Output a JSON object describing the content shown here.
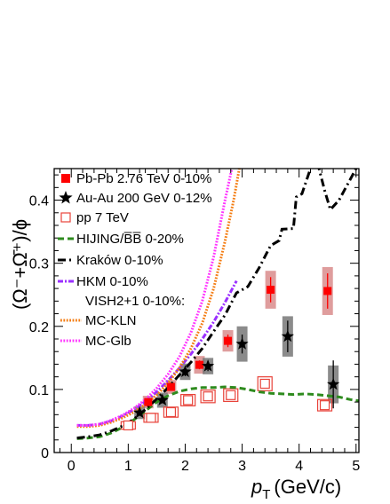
{
  "chart_data": {
    "type": "scatter",
    "xlabel": "p_T (GeV/c)",
    "xlabel_parts": {
      "main": "p",
      "sub": "T",
      "unit": "(GeV/c)"
    },
    "ylabel": "(Ω⁻+Ω̄⁺)/ϕ",
    "xlim": [
      -0.3,
      5.05
    ],
    "ylim": [
      0,
      0.45
    ],
    "x_ticks": [
      0,
      1,
      2,
      3,
      4,
      5
    ],
    "y_ticks": [
      0,
      0.1,
      0.2,
      0.3,
      0.4
    ],
    "x_tick_labels": [
      "0",
      "1",
      "2",
      "3",
      "4",
      "5"
    ],
    "y_tick_labels": [
      "0",
      "0.1",
      "0.2",
      "0.3",
      "0.4"
    ],
    "grid": false,
    "legend_position": "top-left inside plot",
    "legend_header": "VISH2+1 0-10%:",
    "series": [
      {
        "name": "Pb-Pb 2.76 TeV 0-10%",
        "kind": "points",
        "marker": "filled-square",
        "color": "#ff0000",
        "points": [
          {
            "x": 1.35,
            "y": 0.08,
            "stat": 0.004,
            "sys": 0.01
          },
          {
            "x": 1.75,
            "y": 0.104,
            "stat": 0.005,
            "sys": 0.011
          },
          {
            "x": 2.25,
            "y": 0.139,
            "stat": 0.007,
            "sys": 0.014
          },
          {
            "x": 2.75,
            "y": 0.177,
            "stat": 0.01,
            "sys": 0.017
          },
          {
            "x": 3.5,
            "y": 0.258,
            "stat": 0.02,
            "sys": 0.03
          },
          {
            "x": 4.5,
            "y": 0.256,
            "stat": 0.028,
            "sys": 0.038
          }
        ]
      },
      {
        "name": "Au-Au 200 GeV 0-12%",
        "kind": "points",
        "marker": "star",
        "color": "#000000",
        "points": [
          {
            "x": 1.2,
            "y": 0.063,
            "stat": 0.004,
            "sys": 0.01
          },
          {
            "x": 1.6,
            "y": 0.083,
            "stat": 0.005,
            "sys": 0.012
          },
          {
            "x": 2.0,
            "y": 0.128,
            "stat": 0.007,
            "sys": 0.013
          },
          {
            "x": 2.4,
            "y": 0.137,
            "stat": 0.008,
            "sys": 0.013
          },
          {
            "x": 3.0,
            "y": 0.172,
            "stat": 0.015,
            "sys": 0.028
          },
          {
            "x": 3.8,
            "y": 0.184,
            "stat": 0.025,
            "sys": 0.032
          },
          {
            "x": 4.6,
            "y": 0.108,
            "stat": 0.038,
            "sys": 0.03
          }
        ]
      },
      {
        "name": "pp 7 TeV",
        "kind": "points",
        "marker": "open-square",
        "color": "#e8433a",
        "points": [
          {
            "x": 1.0,
            "y": 0.043,
            "stat": 0.002,
            "sys": 0.006
          },
          {
            "x": 1.4,
            "y": 0.055,
            "stat": 0.002,
            "sys": 0.007
          },
          {
            "x": 1.75,
            "y": 0.064,
            "stat": 0.003,
            "sys": 0.008
          },
          {
            "x": 2.05,
            "y": 0.083,
            "stat": 0.003,
            "sys": 0.009
          },
          {
            "x": 2.4,
            "y": 0.089,
            "stat": 0.004,
            "sys": 0.01
          },
          {
            "x": 2.8,
            "y": 0.091,
            "stat": 0.004,
            "sys": 0.01
          },
          {
            "x": 3.4,
            "y": 0.109,
            "stat": 0.006,
            "sys": 0.011
          },
          {
            "x": 4.45,
            "y": 0.075,
            "stat": 0.005,
            "sys": 0.009
          }
        ]
      },
      {
        "name": "HIJING/B̅B̅ 0-20%",
        "kind": "line",
        "style": "dashed",
        "color": "#2e8b1e",
        "points": [
          [
            0.1,
            0.022
          ],
          [
            0.3,
            0.023
          ],
          [
            0.5,
            0.025
          ],
          [
            0.7,
            0.031
          ],
          [
            0.9,
            0.04
          ],
          [
            1.1,
            0.052
          ],
          [
            1.3,
            0.066
          ],
          [
            1.5,
            0.08
          ],
          [
            1.7,
            0.09
          ],
          [
            1.9,
            0.097
          ],
          [
            2.1,
            0.101
          ],
          [
            2.3,
            0.103
          ],
          [
            2.5,
            0.103
          ],
          [
            2.7,
            0.104
          ],
          [
            2.9,
            0.103
          ],
          [
            3.1,
            0.1
          ],
          [
            3.3,
            0.096
          ],
          [
            3.5,
            0.094
          ],
          [
            3.7,
            0.093
          ],
          [
            3.9,
            0.092
          ],
          [
            4.1,
            0.093
          ],
          [
            4.3,
            0.092
          ],
          [
            4.5,
            0.09
          ],
          [
            4.7,
            0.088
          ],
          [
            4.9,
            0.084
          ],
          [
            5.05,
            0.082
          ]
        ]
      },
      {
        "name": "Kraków 0-10%",
        "kind": "line",
        "style": "dash-dot",
        "color": "#000000",
        "points": [
          [
            0.1,
            0.023
          ],
          [
            0.3,
            0.025
          ],
          [
            0.5,
            0.028
          ],
          [
            0.7,
            0.034
          ],
          [
            0.9,
            0.042
          ],
          [
            1.1,
            0.053
          ],
          [
            1.3,
            0.068
          ],
          [
            1.5,
            0.085
          ],
          [
            1.7,
            0.103
          ],
          [
            1.9,
            0.123
          ],
          [
            2.1,
            0.143
          ],
          [
            2.3,
            0.165
          ],
          [
            2.5,
            0.192
          ],
          [
            2.7,
            0.218
          ],
          [
            2.9,
            0.253
          ],
          [
            3.1,
            0.263
          ],
          [
            3.3,
            0.293
          ],
          [
            3.5,
            0.328
          ],
          [
            3.65,
            0.336
          ],
          [
            3.7,
            0.354
          ],
          [
            3.9,
            0.355
          ],
          [
            3.95,
            0.405
          ],
          [
            4.05,
            0.41
          ],
          [
            4.2,
            0.45
          ],
          [
            4.25,
            0.47
          ],
          [
            4.3,
            0.47
          ],
          [
            4.35,
            0.45
          ],
          [
            4.45,
            0.415
          ],
          [
            4.55,
            0.385
          ],
          [
            4.7,
            0.4
          ],
          [
            4.85,
            0.425
          ],
          [
            5.0,
            0.45
          ],
          [
            5.05,
            0.465
          ]
        ]
      },
      {
        "name": "HKM 0-10%",
        "kind": "line",
        "style": "dash-dot-dense",
        "color": "#9b30ff",
        "points": [
          [
            0.1,
            0.043
          ],
          [
            0.3,
            0.043
          ],
          [
            0.5,
            0.045
          ],
          [
            0.7,
            0.05
          ],
          [
            0.9,
            0.058
          ],
          [
            1.1,
            0.068
          ],
          [
            1.3,
            0.081
          ],
          [
            1.5,
            0.096
          ],
          [
            1.7,
            0.114
          ],
          [
            1.9,
            0.134
          ],
          [
            2.1,
            0.156
          ],
          [
            2.3,
            0.18
          ],
          [
            2.5,
            0.207
          ],
          [
            2.7,
            0.238
          ],
          [
            2.9,
            0.272
          ]
        ]
      },
      {
        "name": "MC-KLN",
        "kind": "line",
        "style": "dotted",
        "color": "#f47d13",
        "points": [
          [
            0.1,
            0.041
          ],
          [
            0.3,
            0.041
          ],
          [
            0.5,
            0.043
          ],
          [
            0.7,
            0.048
          ],
          [
            0.9,
            0.055
          ],
          [
            1.1,
            0.064
          ],
          [
            1.3,
            0.076
          ],
          [
            1.5,
            0.091
          ],
          [
            1.7,
            0.11
          ],
          [
            1.9,
            0.134
          ],
          [
            2.1,
            0.165
          ],
          [
            2.3,
            0.205
          ],
          [
            2.5,
            0.26
          ],
          [
            2.7,
            0.335
          ],
          [
            2.85,
            0.4
          ],
          [
            2.95,
            0.45
          ]
        ]
      },
      {
        "name": "MC-Glb",
        "kind": "line",
        "style": "dotted",
        "color": "#ff33ff",
        "points": [
          [
            0.1,
            0.043
          ],
          [
            0.3,
            0.043
          ],
          [
            0.5,
            0.045
          ],
          [
            0.7,
            0.051
          ],
          [
            0.9,
            0.059
          ],
          [
            1.1,
            0.07
          ],
          [
            1.3,
            0.084
          ],
          [
            1.5,
            0.102
          ],
          [
            1.7,
            0.124
          ],
          [
            1.9,
            0.152
          ],
          [
            2.1,
            0.19
          ],
          [
            2.3,
            0.24
          ],
          [
            2.5,
            0.31
          ],
          [
            2.7,
            0.4
          ],
          [
            2.82,
            0.45
          ]
        ]
      }
    ]
  }
}
